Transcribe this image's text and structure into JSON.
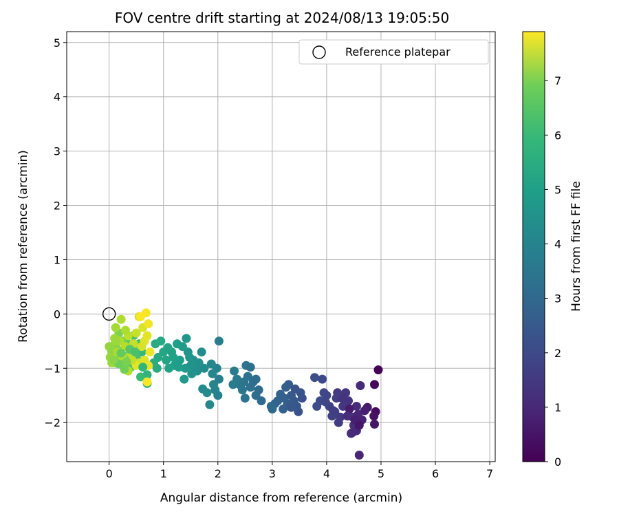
{
  "chart_data": {
    "type": "scatter",
    "title": "FOV centre drift starting at 2024/08/13 19:05:50",
    "xlabel": "Angular distance from reference (arcmin)",
    "ylabel": "Rotation from reference (arcmin)",
    "colorbar_label": "Hours from first FF file",
    "colormap": "viridis",
    "xlim": [
      -0.78,
      7.1
    ],
    "ylim": [
      -2.72,
      5.2
    ],
    "clim": [
      0,
      7.9
    ],
    "x_ticks": [
      0,
      1,
      2,
      3,
      4,
      5,
      6,
      7
    ],
    "y_ticks": [
      -2,
      -1,
      0,
      1,
      2,
      3,
      4,
      5
    ],
    "colorbar_ticks": [
      0,
      1,
      2,
      3,
      4,
      5,
      6,
      7
    ],
    "grid": true,
    "legend": {
      "placement": "upper-right",
      "entries": [
        {
          "label": "Reference platepar",
          "marker": "open-circle",
          "color": "#000000"
        }
      ]
    },
    "reference_point": {
      "x": 0,
      "y": 0
    },
    "points": [
      [
        4.95,
        -1.03,
        0.05
      ],
      [
        4.88,
        -1.3,
        0.15
      ],
      [
        4.9,
        -1.8,
        0.25
      ],
      [
        4.87,
        -1.88,
        0.35
      ],
      [
        4.88,
        -2.03,
        0.45
      ],
      [
        4.75,
        -1.72,
        0.55
      ],
      [
        4.7,
        -1.78,
        0.65
      ],
      [
        4.65,
        -1.95,
        0.75
      ],
      [
        4.6,
        -2.6,
        0.85
      ],
      [
        4.62,
        -1.32,
        0.95
      ],
      [
        4.55,
        -1.7,
        1.0
      ],
      [
        4.5,
        -2.05,
        1.05
      ],
      [
        4.55,
        -2.15,
        0.9
      ],
      [
        4.48,
        -1.9,
        1.1
      ],
      [
        4.45,
        -2.2,
        1.15
      ],
      [
        4.4,
        -1.6,
        1.2
      ],
      [
        4.35,
        -1.45,
        1.25
      ],
      [
        4.3,
        -1.7,
        1.3
      ],
      [
        4.25,
        -1.9,
        1.35
      ],
      [
        4.22,
        -2.0,
        1.4
      ],
      [
        4.18,
        -1.55,
        1.45
      ],
      [
        4.15,
        -1.8,
        1.5
      ],
      [
        4.1,
        -1.88,
        1.55
      ],
      [
        4.05,
        -1.7,
        1.6
      ],
      [
        4.0,
        -1.5,
        1.65
      ],
      [
        3.95,
        -1.45,
        1.7
      ],
      [
        3.92,
        -1.2,
        1.75
      ],
      [
        3.88,
        -1.6,
        1.8
      ],
      [
        3.82,
        -1.7,
        1.85
      ],
      [
        3.78,
        -1.17,
        1.9
      ],
      [
        4.58,
        -1.85,
        0.8
      ],
      [
        4.52,
        -1.95,
        0.7
      ],
      [
        4.42,
        -1.75,
        0.6
      ],
      [
        4.6,
        -2.05,
        0.5
      ],
      [
        4.38,
        -1.88,
        1.0
      ],
      [
        4.28,
        -1.55,
        1.2
      ],
      [
        4.2,
        -1.45,
        1.35
      ],
      [
        4.12,
        -1.78,
        1.45
      ],
      [
        3.98,
        -1.62,
        1.7
      ],
      [
        4.48,
        -2.18,
        0.95
      ],
      [
        3.55,
        -1.55,
        1.95
      ],
      [
        3.52,
        -1.45,
        2.0
      ],
      [
        3.48,
        -1.8,
        2.05
      ],
      [
        3.45,
        -1.7,
        2.1
      ],
      [
        3.4,
        -1.6,
        2.15
      ],
      [
        3.35,
        -1.5,
        2.2
      ],
      [
        3.3,
        -1.3,
        2.25
      ],
      [
        3.28,
        -1.65,
        2.3
      ],
      [
        3.25,
        -1.35,
        2.35
      ],
      [
        3.2,
        -1.75,
        2.4
      ],
      [
        3.15,
        -1.48,
        2.45
      ],
      [
        3.1,
        -1.6,
        2.5
      ],
      [
        3.05,
        -1.65,
        2.55
      ],
      [
        3.0,
        -1.75,
        2.6
      ],
      [
        2.98,
        -1.7,
        2.65
      ],
      [
        3.42,
        -1.38,
        2.05
      ],
      [
        3.35,
        -1.72,
        2.18
      ],
      [
        3.22,
        -1.55,
        2.38
      ],
      [
        2.8,
        -1.6,
        2.7
      ],
      [
        2.75,
        -1.4,
        2.75
      ],
      [
        2.7,
        -1.5,
        2.8
      ],
      [
        2.65,
        -1.25,
        2.85
      ],
      [
        2.6,
        -1.35,
        2.9
      ],
      [
        2.55,
        -1.15,
        2.95
      ],
      [
        2.52,
        -0.95,
        3.0
      ],
      [
        2.5,
        -1.55,
        3.05
      ],
      [
        2.45,
        -1.4,
        3.1
      ],
      [
        2.4,
        -1.3,
        3.15
      ],
      [
        2.35,
        -1.2,
        3.2
      ],
      [
        2.3,
        -1.05,
        3.25
      ],
      [
        2.28,
        -1.3,
        3.3
      ],
      [
        2.6,
        -0.98,
        2.88
      ],
      [
        2.7,
        -1.2,
        2.78
      ],
      [
        2.48,
        -1.25,
        3.02
      ],
      [
        2.02,
        -0.5,
        3.35
      ],
      [
        2.02,
        -1.2,
        3.4
      ],
      [
        2.0,
        -1.5,
        3.45
      ],
      [
        1.98,
        -1.0,
        3.5
      ],
      [
        1.95,
        -1.4,
        3.55
      ],
      [
        1.92,
        -1.3,
        3.6
      ],
      [
        1.9,
        -1.1,
        3.65
      ],
      [
        1.85,
        -1.67,
        3.7
      ],
      [
        1.8,
        -1.45,
        3.75
      ],
      [
        1.75,
        -1.0,
        3.8
      ],
      [
        1.7,
        -0.7,
        3.85
      ],
      [
        1.65,
        -0.9,
        3.9
      ],
      [
        1.6,
        -1.0,
        3.95
      ],
      [
        1.55,
        -0.85,
        4.0
      ],
      [
        1.5,
        -0.95,
        4.05
      ],
      [
        1.45,
        -0.7,
        4.1
      ],
      [
        1.42,
        -0.45,
        4.15
      ],
      [
        1.4,
        -1.0,
        4.2
      ],
      [
        1.38,
        -1.2,
        4.25
      ],
      [
        1.35,
        -0.6,
        4.3
      ],
      [
        1.3,
        -0.85,
        4.35
      ],
      [
        1.25,
        -0.55,
        4.4
      ],
      [
        1.2,
        -0.95,
        4.45
      ],
      [
        1.15,
        -0.7,
        4.5
      ],
      [
        1.1,
        -1.0,
        4.55
      ],
      [
        1.05,
        -0.85,
        4.6
      ],
      [
        1.0,
        -0.7,
        4.65
      ],
      [
        0.95,
        -0.5,
        4.7
      ],
      [
        0.9,
        -0.8,
        4.75
      ],
      [
        0.88,
        -1.0,
        4.8
      ],
      [
        0.85,
        -0.55,
        4.85
      ],
      [
        0.82,
        -0.9,
        4.9
      ],
      [
        1.72,
        -1.38,
        3.78
      ],
      [
        1.62,
        -1.05,
        3.92
      ],
      [
        1.48,
        -0.8,
        4.08
      ],
      [
        1.28,
        -0.98,
        4.38
      ],
      [
        1.18,
        -0.8,
        4.48
      ],
      [
        1.08,
        -0.62,
        4.58
      ],
      [
        1.52,
        -1.1,
        4.02
      ],
      [
        1.88,
        -0.92,
        3.68
      ],
      [
        0.7,
        -1.28,
        5.0
      ],
      [
        0.7,
        -1.12,
        5.05
      ],
      [
        0.65,
        -0.95,
        5.15
      ],
      [
        0.6,
        -0.7,
        5.25
      ],
      [
        0.58,
        -1.16,
        5.35
      ],
      [
        0.55,
        -0.55,
        5.45
      ],
      [
        0.5,
        -0.8,
        5.55
      ],
      [
        0.45,
        -0.4,
        5.65
      ],
      [
        0.4,
        -0.98,
        5.75
      ],
      [
        0.35,
        -0.55,
        5.85
      ],
      [
        0.3,
        -0.78,
        5.95
      ],
      [
        0.28,
        -0.95,
        6.05
      ],
      [
        0.25,
        -0.5,
        6.15
      ],
      [
        0.2,
        -0.8,
        6.25
      ],
      [
        0.18,
        -0.35,
        6.3
      ],
      [
        0.15,
        -0.65,
        6.35
      ],
      [
        0.1,
        -0.9,
        6.4
      ],
      [
        0.08,
        -0.58,
        6.45
      ],
      [
        0.05,
        -0.7,
        6.5
      ],
      [
        0.02,
        -0.62,
        6.55
      ],
      [
        0.0,
        -0.6,
        6.6
      ],
      [
        0.02,
        -0.8,
        6.65
      ],
      [
        0.05,
        -0.9,
        6.7
      ],
      [
        0.1,
        -0.45,
        6.75
      ],
      [
        0.12,
        -0.25,
        6.8
      ],
      [
        0.15,
        -0.7,
        6.85
      ],
      [
        0.2,
        -0.5,
        6.9
      ],
      [
        0.22,
        -0.1,
        6.95
      ],
      [
        0.25,
        -0.8,
        7.0
      ],
      [
        0.3,
        -0.6,
        7.05
      ],
      [
        0.35,
        -0.4,
        7.1
      ],
      [
        0.4,
        -0.72,
        7.15
      ],
      [
        0.45,
        -0.55,
        7.2
      ],
      [
        0.5,
        -0.35,
        7.25
      ],
      [
        0.55,
        -0.9,
        7.3
      ],
      [
        0.55,
        -0.05,
        7.35
      ],
      [
        0.6,
        -0.6,
        7.4
      ],
      [
        0.62,
        -0.25,
        7.45
      ],
      [
        0.65,
        -0.5,
        7.5
      ],
      [
        0.65,
        -0.85,
        7.55
      ],
      [
        0.7,
        -0.4,
        7.6
      ],
      [
        0.72,
        -0.95,
        7.65
      ],
      [
        0.75,
        -0.7,
        7.7
      ],
      [
        0.72,
        -0.18,
        7.75
      ],
      [
        0.68,
        0.02,
        7.8
      ],
      [
        0.58,
        -0.05,
        7.85
      ],
      [
        0.7,
        -1.25,
        7.85
      ],
      [
        0.5,
        -0.95,
        7.6
      ],
      [
        0.35,
        -1.05,
        7.0
      ],
      [
        0.28,
        -1.02,
        6.2
      ],
      [
        0.18,
        -0.92,
        6.1
      ],
      [
        0.08,
        -0.85,
        6.48
      ],
      [
        0.42,
        -0.85,
        7.18
      ],
      [
        0.3,
        -0.3,
        6.9
      ],
      [
        0.12,
        -0.5,
        6.7
      ],
      [
        0.38,
        -0.65,
        5.8
      ],
      [
        0.48,
        -0.7,
        5.6
      ],
      [
        0.22,
        -0.72,
        6.0
      ],
      [
        0.32,
        -0.88,
        6.28
      ],
      [
        0.62,
        -0.98,
        5.2
      ]
    ]
  }
}
